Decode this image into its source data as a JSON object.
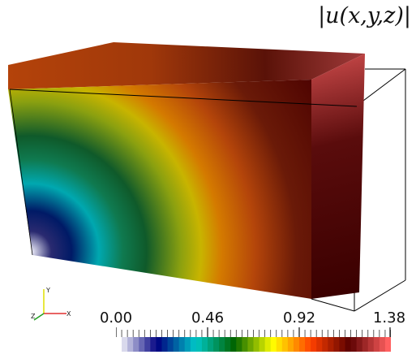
{
  "title": "|u(x,y,z)|",
  "colorbar": {
    "min": 0.0,
    "max": 1.38,
    "tick_labels": [
      "0.00",
      "0.46",
      "0.92",
      "1.38"
    ],
    "tick_values": [
      0.0,
      0.46,
      0.92,
      1.38
    ],
    "stops": [
      "#ffffff",
      "#000080",
      "#00c8c8",
      "#006400",
      "#ffff00",
      "#ff4000",
      "#5a0000",
      "#ff6060"
    ]
  },
  "axes": {
    "x_label": "X",
    "y_label": "Y",
    "z_label": "Z",
    "x_color": "#e03030",
    "y_color": "#e0e000",
    "z_color": "#20a020"
  }
}
